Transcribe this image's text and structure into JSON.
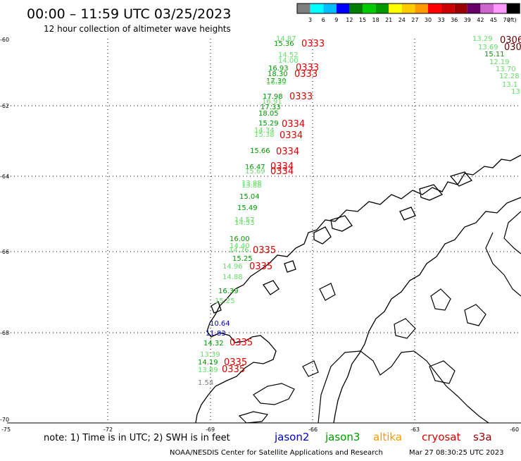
{
  "header": {
    "title": "00:00 – 11:59 UTC 03/25/2023",
    "subtitle": "12 hour collection of altimeter wave heights"
  },
  "legend": {
    "unit": "(ft)",
    "colors": [
      "#7f7f7f",
      "#00ffff",
      "#00bfff",
      "#0000ff",
      "#007f00",
      "#00cc00",
      "#009900",
      "#ffff00",
      "#ffcc00",
      "#ff9900",
      "#ff0000",
      "#cc0000",
      "#990000",
      "#660066",
      "#cc66cc",
      "#ff99ff",
      "#000000"
    ],
    "ticks": [
      "3",
      "6",
      "9",
      "12",
      "15",
      "18",
      "21",
      "24",
      "27",
      "30",
      "33",
      "36",
      "39",
      "42",
      "45",
      "70"
    ]
  },
  "axes": {
    "lat_labels": [
      "-60",
      "-62",
      "-64",
      "-66",
      "-68",
      "-70"
    ],
    "lon_labels": [
      "-75",
      "-72",
      "-69",
      "-66",
      "-63",
      "-60"
    ]
  },
  "wave_heights": [
    {
      "text": "14.87",
      "color": "#66dd66"
    },
    {
      "text": "15.36",
      "color": "#009900"
    },
    {
      "text": "14.52",
      "color": "#66dd66"
    },
    {
      "text": "14.00",
      "color": "#66dd66"
    },
    {
      "text": "16.93",
      "color": "#009900"
    },
    {
      "text": "18.30",
      "color": "#009900"
    },
    {
      "text": "17.30",
      "color": "#009900"
    },
    {
      "text": "16.39",
      "color": "#66dd66"
    },
    {
      "text": "17.98",
      "color": "#009900"
    },
    {
      "text": "16.91",
      "color": "#66dd66"
    },
    {
      "text": "17.33",
      "color": "#009900"
    },
    {
      "text": "18.05",
      "color": "#009900"
    },
    {
      "text": "15.29",
      "color": "#009900"
    },
    {
      "text": "14.34",
      "color": "#66dd66"
    },
    {
      "text": "15.38",
      "color": "#66dd66"
    },
    {
      "text": "15.66",
      "color": "#009900"
    },
    {
      "text": "16.47",
      "color": "#009900"
    },
    {
      "text": "15.69",
      "color": "#66dd66"
    },
    {
      "text": "13.98",
      "color": "#66dd66"
    },
    {
      "text": "13.88",
      "color": "#66dd66"
    },
    {
      "text": "15.04",
      "color": "#009900"
    },
    {
      "text": "15.49",
      "color": "#009900"
    },
    {
      "text": "14.57",
      "color": "#66dd66"
    },
    {
      "text": "14.53",
      "color": "#66dd66"
    },
    {
      "text": "16.00",
      "color": "#009900"
    },
    {
      "text": "14.40",
      "color": "#66dd66"
    },
    {
      "text": "14.76",
      "color": "#66dd66"
    },
    {
      "text": "15.25",
      "color": "#009900"
    },
    {
      "text": "14.96",
      "color": "#66dd66"
    },
    {
      "text": "14.88",
      "color": "#66dd66"
    },
    {
      "text": "16.39",
      "color": "#009900"
    },
    {
      "text": "15.25",
      "color": "#66dd66"
    },
    {
      "text": "10.64",
      "color": "#0000cc"
    },
    {
      "text": "11.83",
      "color": "#0000cc"
    },
    {
      "text": "14.32",
      "color": "#009900"
    },
    {
      "text": "13.39",
      "color": "#66dd66"
    },
    {
      "text": "14.19",
      "color": "#009900"
    },
    {
      "text": "13.89",
      "color": "#66dd66"
    },
    {
      "text": "1.54",
      "color": "#7f7f7f"
    },
    {
      "text": "13.29",
      "color": "#66dd66"
    },
    {
      "text": "13.69",
      "color": "#66dd66"
    },
    {
      "text": "15.11",
      "color": "#009900"
    },
    {
      "text": "12.19",
      "color": "#66dd66"
    },
    {
      "text": "13.70",
      "color": "#66dd66"
    },
    {
      "text": "12.28",
      "color": "#66dd66"
    },
    {
      "text": "13.1",
      "color": "#66dd66"
    },
    {
      "text": "13",
      "color": "#66dd66"
    }
  ],
  "time_stamps": [
    {
      "text": "0333",
      "color": "#dd0000"
    },
    {
      "text": "0333",
      "color": "#dd0000"
    },
    {
      "text": "0333",
      "color": "#dd0000"
    },
    {
      "text": "0333",
      "color": "#dd0000"
    },
    {
      "text": "0334",
      "color": "#dd0000"
    },
    {
      "text": "0334",
      "color": "#dd0000"
    },
    {
      "text": "0334",
      "color": "#dd0000"
    },
    {
      "text": "0334",
      "color": "#dd0000"
    },
    {
      "text": "0334",
      "color": "#dd0000"
    },
    {
      "text": "0335",
      "color": "#dd0000"
    },
    {
      "text": "0335",
      "color": "#dd0000"
    },
    {
      "text": "0335",
      "color": "#dd0000"
    },
    {
      "text": "0335",
      "color": "#dd0000"
    },
    {
      "text": "0335",
      "color": "#dd0000"
    },
    {
      "text": "0306",
      "color": "#660000"
    },
    {
      "text": "030",
      "color": "#660000"
    }
  ],
  "footer": {
    "note": "note: 1) Time is in UTC; 2) SWH is in feet",
    "satellites": [
      {
        "name": "jason2",
        "color": "#0000cc"
      },
      {
        "name": "jason3",
        "color": "#009900"
      },
      {
        "name": "altika",
        "color": "#ff9900"
      },
      {
        "name": "cryosat",
        "color": "#dd0000"
      },
      {
        "name": "s3a",
        "color": "#990000"
      }
    ],
    "credit": "NOAA/NESDIS Center for Satellite Applications and Research",
    "generated": "Mar 27 08:30:25 UTC 2023"
  }
}
